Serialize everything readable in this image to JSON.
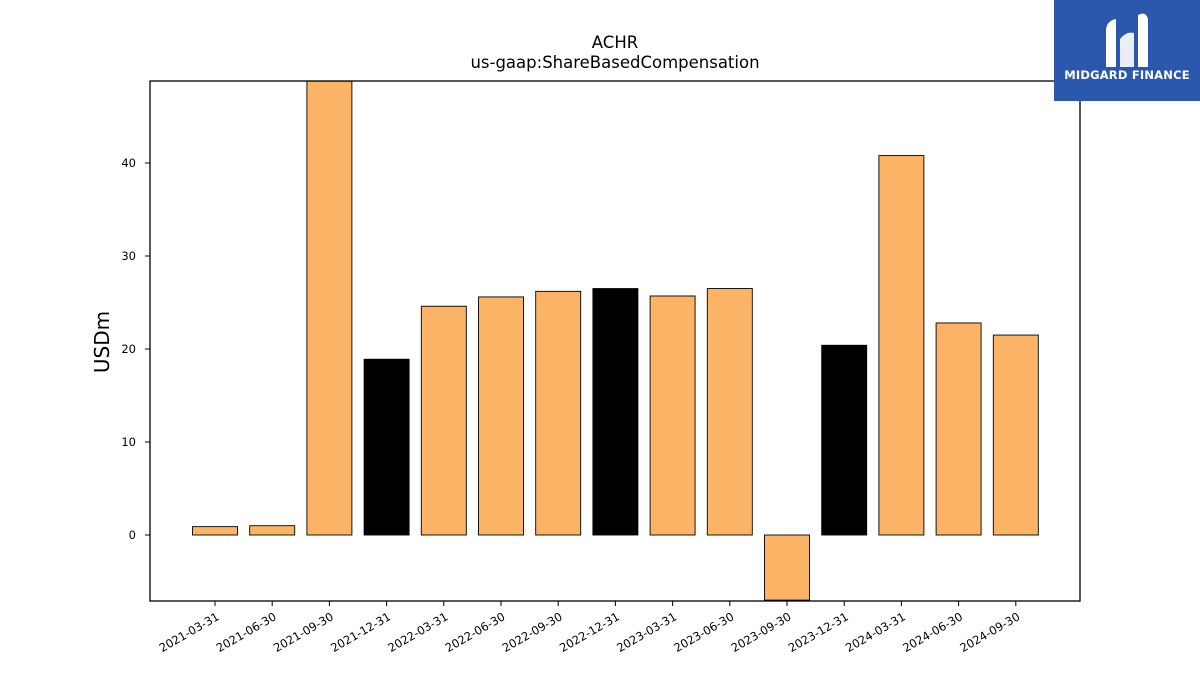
{
  "chart_data": {
    "type": "bar",
    "title": "ACHR",
    "subtitle": "us-gaap:ShareBasedCompensation",
    "ylabel": "USDm",
    "xlabel": "",
    "ylim": [
      -7,
      48.8
    ],
    "yticks": [
      0,
      10,
      20,
      30,
      40
    ],
    "grid": false,
    "categories": [
      "2021-03-31",
      "2021-06-30",
      "2021-09-30",
      "2021-12-31",
      "2022-03-31",
      "2022-06-30",
      "2022-09-30",
      "2022-12-31",
      "2023-03-31",
      "2023-06-30",
      "2023-09-30",
      "2023-12-31",
      "2024-03-31",
      "2024-06-30",
      "2024-09-30"
    ],
    "values": [
      0.9,
      1.0,
      48.8,
      18.9,
      24.6,
      25.6,
      26.2,
      26.5,
      25.7,
      26.5,
      -7.0,
      20.4,
      40.8,
      22.8,
      21.5
    ],
    "bar_colors": [
      "#fbb465",
      "#fbb465",
      "#fbb465",
      "#000000",
      "#fbb465",
      "#fbb465",
      "#fbb465",
      "#000000",
      "#fbb465",
      "#fbb465",
      "#fbb465",
      "#000000",
      "#fbb465",
      "#fbb465",
      "#fbb465"
    ]
  },
  "logo": {
    "text": "MIDGARD FINANCE",
    "background": "#2b57ac"
  }
}
